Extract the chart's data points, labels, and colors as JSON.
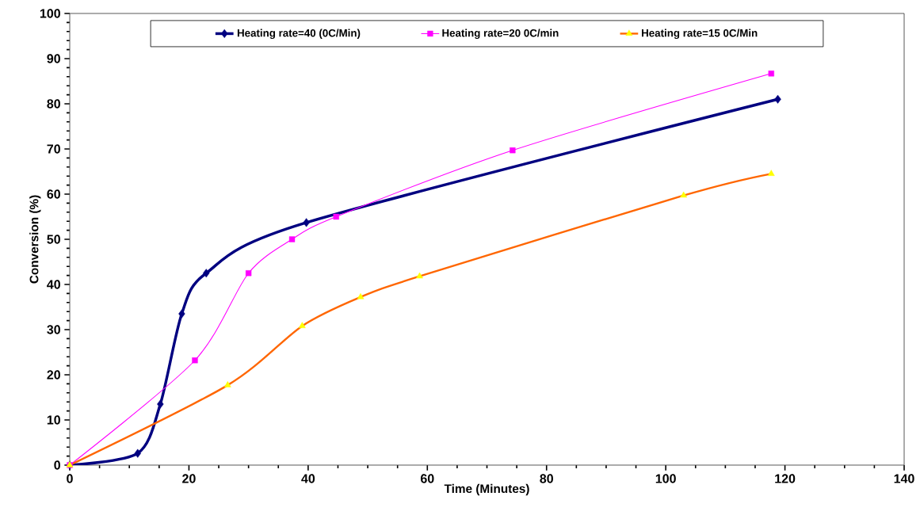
{
  "chart_data": {
    "type": "line",
    "xlabel": "Time (Minutes)",
    "ylabel": "Conversion (%)",
    "xlim": [
      0,
      140
    ],
    "xticks": [
      0,
      20,
      40,
      60,
      80,
      100,
      120,
      140
    ],
    "ylim": [
      0,
      100
    ],
    "yticks": [
      0,
      10,
      20,
      30,
      40,
      50,
      60,
      70,
      80,
      90,
      100
    ],
    "grid": false,
    "legend": "top",
    "series": [
      {
        "name": "Heating rate=40 (0C/Min)",
        "color": "#000080",
        "marker": "diamond",
        "x": [
          0,
          11.4,
          15.2,
          18.8,
          22.9,
          39.7,
          118.8
        ],
        "values": [
          0,
          2.6,
          13.5,
          33.5,
          42.5,
          53.7,
          81
        ]
      },
      {
        "name": "Heating rate=20 0C/min",
        "color": "#ff00ff",
        "marker": "square",
        "x": [
          0,
          21,
          30,
          37.3,
          44.7,
          74.3,
          117.7
        ],
        "values": [
          0,
          23.2,
          42.5,
          50,
          55,
          69.7,
          86.7
        ]
      },
      {
        "name": "Heating rate=15 0C/Min",
        "color": "#ff6600",
        "colors": [
          "#ffff00",
          "#ffff00",
          "#ffff00",
          "#ffff00",
          "#ffff00",
          "#ffff00",
          "#ffff00"
        ],
        "marker": "triangle",
        "x": [
          0,
          26.5,
          39,
          48.8,
          58.7,
          103,
          117.7
        ],
        "values": [
          0,
          17.7,
          30.8,
          37.2,
          41.8,
          59.7,
          64.5
        ]
      }
    ]
  }
}
